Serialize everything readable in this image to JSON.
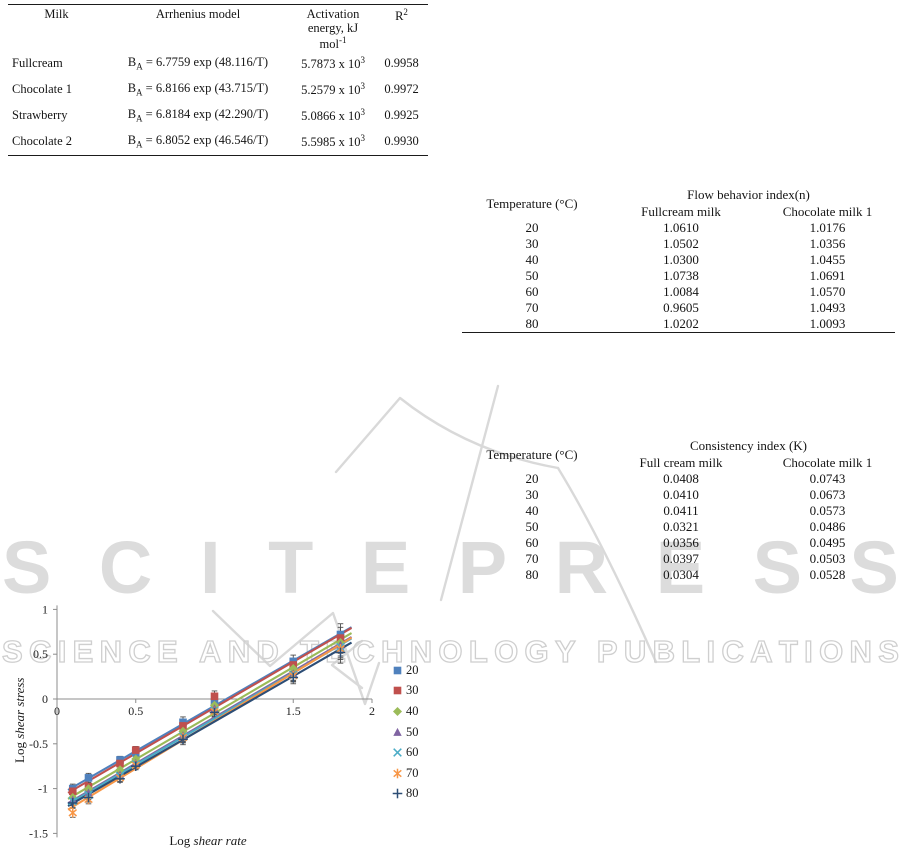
{
  "watermark": {
    "title": "SCITEPRESS",
    "subtitle": "SCIENCE AND TECHNOLOGY PUBLICATIONS",
    "fill_color": "#dcdcdc",
    "outline_color": "#cfcfcf"
  },
  "table1": {
    "headers": {
      "milk": "Milk",
      "model": "Arrhenius model",
      "ea_line1": "Activation",
      "ea_line2": "energy, kJ",
      "ea_line3_base": "mol",
      "ea_line3_sup": "-1",
      "r2_base": "R",
      "r2_sup": "2"
    },
    "rows": [
      {
        "milk": "Fullcream",
        "model_base": "B",
        "model_sub": "A",
        "model_rest": " = 6.7759 exp (48.116/T)",
        "ea_base": "5.7873 x 10",
        "ea_sup": "3",
        "r2": "0.9958"
      },
      {
        "milk": "Chocolate 1",
        "model_base": "B",
        "model_sub": "A",
        "model_rest": " = 6.8166 exp (43.715/T)",
        "ea_base": "5.2579 x 10",
        "ea_sup": "3",
        "r2": "0.9972"
      },
      {
        "milk": "Strawberry",
        "model_base": "B",
        "model_sub": "A",
        "model_rest": " = 6.8184 exp (42.290/T)",
        "ea_base": "5.0866 x 10",
        "ea_sup": "3",
        "r2": "0.9925"
      },
      {
        "milk": "Chocolate 2",
        "model_base": "B",
        "model_sub": "A",
        "model_rest": " = 6.8052 exp (46.546/T)",
        "ea_base": "5.5985 x 10",
        "ea_sup": "3",
        "r2": "0.9930"
      }
    ]
  },
  "table2": {
    "temp_header": "Temperature (°C)",
    "group_header": "Flow behavior index(n)",
    "col1": "Fullcream milk",
    "col2": "Chocolate milk 1",
    "rows": [
      [
        "20",
        "1.0610",
        "1.0176"
      ],
      [
        "30",
        "1.0502",
        "1.0356"
      ],
      [
        "40",
        "1.0300",
        "1.0455"
      ],
      [
        "50",
        "1.0738",
        "1.0691"
      ],
      [
        "60",
        "1.0084",
        "1.0570"
      ],
      [
        "70",
        "0.9605",
        "1.0493"
      ],
      [
        "80",
        "1.0202",
        "1.0093"
      ]
    ]
  },
  "table3": {
    "temp_header": "Temperature  (°C)",
    "group_header": "Consistency index (K)",
    "col1": "Full cream milk",
    "col2": "Chocolate milk 1",
    "rows": [
      [
        "20",
        "0.0408",
        "0.0743"
      ],
      [
        "30",
        "0.0410",
        "0.0673"
      ],
      [
        "40",
        "0.0411",
        "0.0573"
      ],
      [
        "50",
        "0.0321",
        "0.0486"
      ],
      [
        "60",
        "0.0356",
        "0.0495"
      ],
      [
        "70",
        "0.0397",
        "0.0503"
      ],
      [
        "80",
        "0.0304",
        "0.0528"
      ]
    ]
  },
  "chart_data": {
    "type": "scatter",
    "title": "",
    "xlabel": {
      "roman": "Log ",
      "italic": "shear rate"
    },
    "ylabel": {
      "roman": "Log ",
      "italic": "shear stress"
    },
    "xlim": [
      0,
      2
    ],
    "ylim": [
      -1.5,
      1
    ],
    "xticks": [
      "0",
      "0.5",
      "1",
      "1.5",
      "2"
    ],
    "yticks": [
      "1",
      "0.5",
      "0",
      "-0.5",
      "-1",
      "-1.5"
    ],
    "grid": false,
    "legend_position": "right",
    "trendlines": true,
    "x": [
      0.1,
      0.2,
      0.4,
      0.5,
      0.8,
      1.0,
      1.5,
      1.8
    ],
    "errors": [
      0.05,
      0.05,
      0.04,
      0.04,
      0.06,
      0.06,
      0.07,
      0.12
    ],
    "series": [
      {
        "name": "20",
        "color": "#4F81BD",
        "marker": "square",
        "values": [
          -1.0,
          -0.88,
          -0.68,
          -0.6,
          -0.26,
          -0.05,
          0.42,
          0.72
        ]
      },
      {
        "name": "30",
        "color": "#C0504D",
        "marker": "square",
        "values": [
          -1.03,
          -0.98,
          -0.72,
          -0.57,
          -0.3,
          0.03,
          0.38,
          0.68
        ]
      },
      {
        "name": "40",
        "color": "#9BBB59",
        "marker": "diamond",
        "values": [
          -1.1,
          -1.0,
          -0.79,
          -0.67,
          -0.36,
          -0.07,
          0.34,
          0.63
        ]
      },
      {
        "name": "50",
        "color": "#8064A2",
        "marker": "triangle",
        "values": [
          -1.13,
          -1.05,
          -0.85,
          -0.72,
          -0.41,
          -0.11,
          0.28,
          0.6
        ]
      },
      {
        "name": "60",
        "color": "#4BACC6",
        "marker": "x",
        "values": [
          -1.14,
          -1.07,
          -0.86,
          -0.73,
          -0.42,
          -0.13,
          0.27,
          0.58
        ]
      },
      {
        "name": "70",
        "color": "#F79646",
        "marker": "asterisk",
        "values": [
          -1.27,
          -1.12,
          -0.88,
          -0.74,
          -0.43,
          -0.14,
          0.26,
          0.56
        ]
      },
      {
        "name": "80",
        "color": "#2C4D75",
        "marker": "plus",
        "values": [
          -1.16,
          -1.1,
          -0.89,
          -0.75,
          -0.45,
          -0.15,
          0.24,
          0.52
        ]
      }
    ]
  }
}
